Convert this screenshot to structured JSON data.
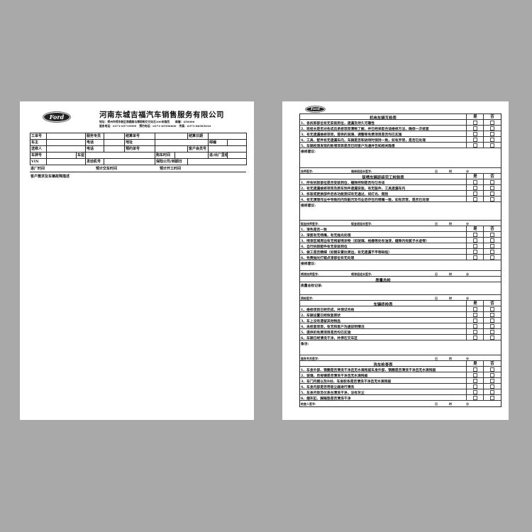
{
  "brand": {
    "logo_text": "Ford"
  },
  "left_form": {
    "company": "河南东城吉福汽车销售服务有限公司",
    "address_line": "地址：郑州市郑东新区商鼎路与博雨街交叉向北300米路西",
    "postcode": "邮编：450000",
    "service_phone": "服务电话：0371-65719999",
    "booking_phone": "预约电话：0371-65590000",
    "fax": "传真：0371-86585010",
    "fields": {
      "work_order": "工单号",
      "service_advisor": "服务专员",
      "settlement_no": "结算单号",
      "settlement_date": "结算日期",
      "owner": "车主",
      "phone": "电话",
      "address": "地址",
      "zip": "邮编",
      "sender": "送修人",
      "phone2": "电话",
      "booking_no": "预约单号",
      "member_no": "客户会员号",
      "plate": "车牌号",
      "model": "车型",
      "purchase_time": "购车时间",
      "mileage": "进/出厂里程",
      "vin": "VIN",
      "engine_no": "发动机号",
      "insurance": "保险公司/到期日"
    },
    "entry_time": "进厂时间",
    "expected_delivery": "预计交车时间",
    "expected_start": "预计开工时间",
    "customer_request": "客户需求及车辆故障描述"
  },
  "right_form": {
    "yes": "是",
    "no": "否",
    "date_labels": {
      "day": "日",
      "hour": "时",
      "minute": "分"
    },
    "sections": [
      {
        "title": "机电车辆互检表",
        "items": [
          "1、各拆卸部位有无安装到位，遗漏及持久可靠性",
          "2、班组长是否对各成员承修项目清晰了解，并已经采取合适维修方法，确保一次修复",
          "3、有无遗漏维修项目，提供的润滑、调整等免费项目是否均已实施",
          "4、工具、配件有无遗漏车内，车辆是否和进场时保持一致，如有异常，是否已处理",
          "5、车辆检测发现的新增项目是否已同客户沟通并告知相关隐患"
        ],
        "notes": "维修建议:",
        "sign1": "技师签字:",
        "sign2": "维修班组长签字:"
      },
      {
        "title": "钣喷车辆班组完工检验表",
        "items": [
          "1、所有拆卸部位是否安装到位，缝隙控制是否均匀合适",
          "2、有无遗漏维修项目及原车饰件遗漏安装，有无脏件、工具遗漏车内",
          "3、拆装或更换部件后各功能测试有无通过，如灯光、雨刮",
          "4、有无清理作业中导致的内饰脏污及作业后存在的喷嘴一致，如有异常，是否已处理"
        ],
        "notes": "维修建议:",
        "sign1": "钣金技师签字:",
        "sign2": "钣金班组长签字:"
      },
      {
        "title": "",
        "items": [
          "1、漆色是否一致",
          "2、漆面有无喷嘴，有无抛光处理",
          "3、喷漆区域周边有无残留喷涂物（如玻璃、格栅等处有油漆，缝隙内有腻子水迹等）",
          "4、自行拆卸配件有无安装到位",
          "5、做工是否精细（如侧车雷达周边，有无遗漏不平等缺陷）",
          "6、免费抛光打蜡点漆部位有无处理"
        ],
        "notes": "维修建议:",
        "sign1": "喷漆技师签字:",
        "sign2": "喷漆班组长签字:"
      },
      {
        "title": "质量总检",
        "items": [],
        "notes": "质量总检记录:",
        "sign1": "质检签字:",
        "sign2": ""
      },
      {
        "title": "车辆终检表",
        "items": [
          "1、维修项目已经完成，并测试合格",
          "2、车辆设置已经恢复原状",
          "3、车上没有遗留其他物品",
          "4、未修复项目，有无和客户沟通说明情况",
          "5、提供的免费项目是否均已实施",
          "6、车辆已经清洗干净，并停在交车区"
        ],
        "notes": "备注:",
        "sign1": "服务专员签字:",
        "sign2": ""
      },
      {
        "title": "洗车检查表",
        "items": [
          "1、车身外部、钢圈是否清洗干净且无水滴残留车身外部、钢圈是否清洗干净且无水滴残留",
          "2、玻璃、后视镜是否清洗干净且无水滴残留",
          "3、车门内侧以及B柱、车身胶条是否清洗干净且无水滴残留",
          "4、车身内部是否用吸尘器进行清洗",
          "5、车身内饰及仪表台清洗干净，没有灰尘",
          "6、烟灰缸、脚踏垫是否清洗干净"
        ],
        "notes": "",
        "sign1": "检查人签字:",
        "sign2": ""
      }
    ]
  }
}
